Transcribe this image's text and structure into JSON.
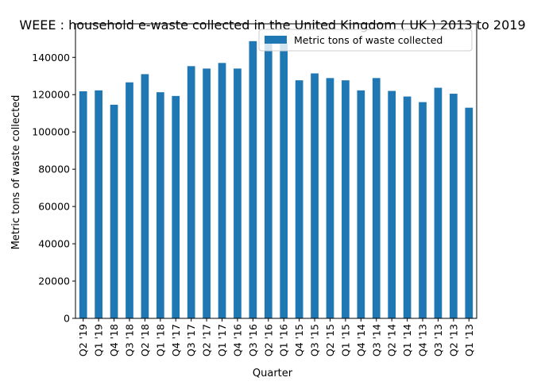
{
  "chart_data": {
    "type": "bar",
    "title": "WEEE  : household e-waste collected in the United Kingdom ( UK ) 2013 to 2019",
    "xlabel": "Quarter",
    "ylabel": "Metric tons of waste collected",
    "ylim": [
      0,
      158000
    ],
    "yticks": [
      0,
      20000,
      40000,
      60000,
      80000,
      100000,
      120000,
      140000
    ],
    "grid": false,
    "legend_position": "top-right",
    "categories": [
      "Q2 '19",
      "Q1 '19",
      "Q4 '18",
      "Q3 '18",
      "Q2 '18",
      "Q1 '18",
      "Q4 '17",
      "Q3 '17",
      "Q2 '17",
      "Q1 '17",
      "Q4 '16",
      "Q3 '16",
      "Q2 '16",
      "Q1 '16",
      "Q4 '15",
      "Q3 '15",
      "Q2 '15",
      "Q1 '15",
      "Q4 '14",
      "Q3 '14",
      "Q2 '14",
      "Q1 '14",
      "Q4 '13",
      "Q3 '13",
      "Q2 '13",
      "Q1 '13"
    ],
    "series": [
      {
        "name": "Metric tons of waste collected",
        "color": "#1f77b4",
        "values": [
          121800,
          122300,
          114600,
          126600,
          131000,
          121300,
          119300,
          135300,
          134000,
          137000,
          134000,
          148700,
          148600,
          147300,
          127700,
          131400,
          128900,
          127700,
          122300,
          128900,
          122000,
          119000,
          116000,
          123700,
          120500,
          113000
        ]
      }
    ]
  }
}
